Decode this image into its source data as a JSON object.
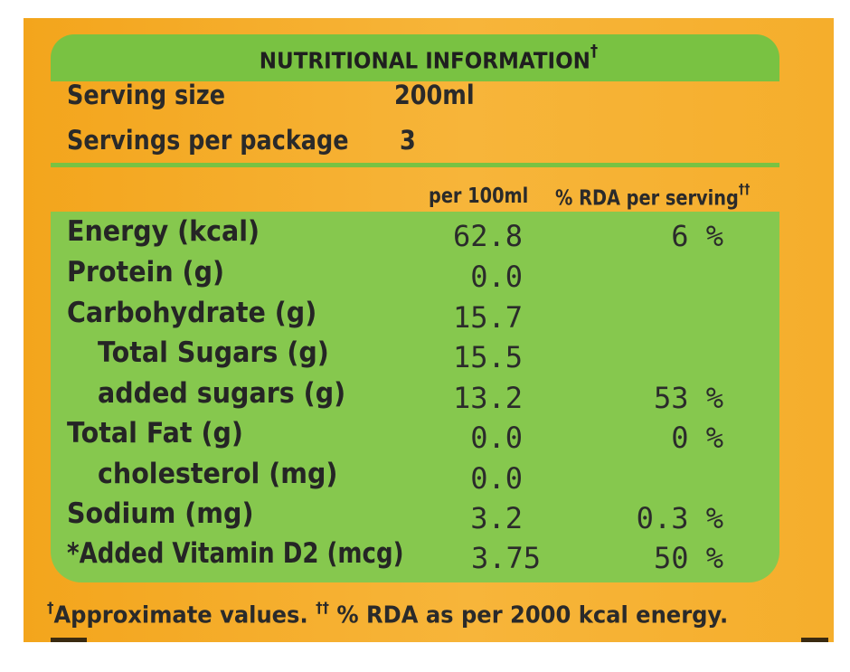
{
  "title": "NUTRITIONAL INFORMATION",
  "title_mark": "†",
  "serving": {
    "size_label": "Serving size",
    "size_value": "200ml",
    "per_package_label": "Servings per package",
    "per_package_value": "3"
  },
  "columns": {
    "per100": "per 100ml",
    "rda": "% RDA per serving",
    "rda_mark": "††"
  },
  "rows": [
    {
      "label": "Energy (kcal)",
      "value": "62.8",
      "rda": "6 %"
    },
    {
      "label": "Protein (g)",
      "value": "0.0",
      "rda": ""
    },
    {
      "label": "Carbohydrate (g)",
      "value": "15.7",
      "rda": ""
    },
    {
      "label": "Total Sugars (g)",
      "value": "15.5",
      "rda": ""
    },
    {
      "label": "added sugars (g)",
      "value": "13.2",
      "rda": "53 %"
    },
    {
      "label": "Total Fat (g)",
      "value": "0.0",
      "rda": "0 %"
    },
    {
      "label": "cholesterol (mg)",
      "value": "0.0",
      "rda": ""
    },
    {
      "label": "Sodium (mg)",
      "value": "3.2",
      "rda": "0.3 %"
    },
    {
      "label": "*Added Vitamin D2 (mcg)",
      "value": "3.75",
      "rda": "50 %"
    }
  ],
  "footnote": {
    "mark1": "†",
    "text1": "Approximate values.",
    "mark2": "††",
    "text2": "% RDA as per 2000 kcal energy."
  },
  "colors": {
    "label_background": "#f5ae2c",
    "panel_green": "#86c84e",
    "header_green": "#79c242",
    "text": "#252525"
  }
}
